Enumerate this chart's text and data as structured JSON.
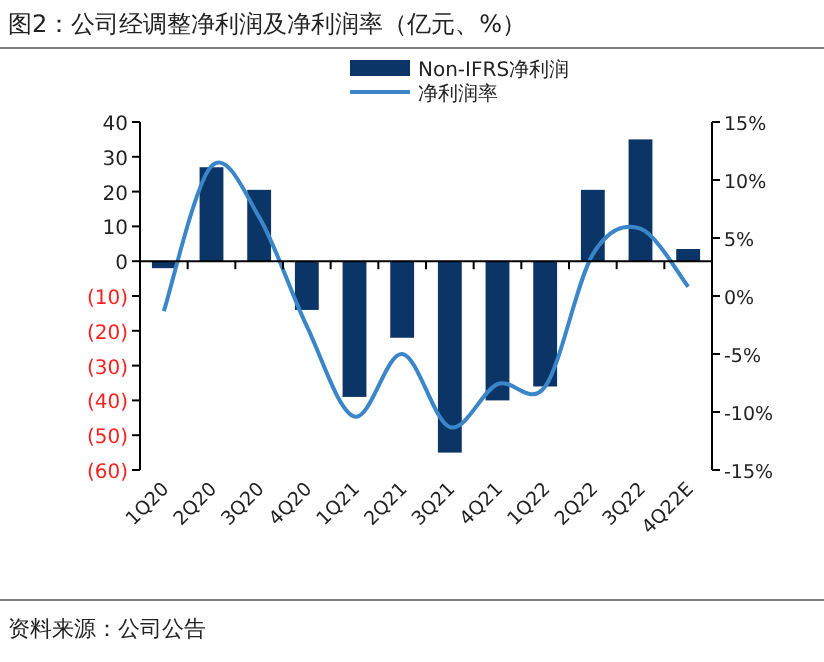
{
  "chart_data": {
    "type": "bar",
    "title": "图2：公司经调整净利润及净利润率（亿元、%）",
    "categories": [
      "1Q20",
      "2Q20",
      "3Q20",
      "4Q20",
      "1Q21",
      "2Q21",
      "3Q21",
      "4Q21",
      "1Q22",
      "2Q22",
      "3Q22",
      "4Q22E"
    ],
    "series": [
      {
        "name": "Non-IFRS净利润",
        "color": "#0b3566",
        "values": [
          -2,
          27,
          20.5,
          -14,
          -39,
          -22,
          -55,
          -40,
          -36,
          20.5,
          35,
          3.5
        ]
      },
      {
        "name": "净利润率",
        "type": "line",
        "axis": "y2",
        "color": "#3a86c8",
        "values": [
          -1.3,
          11.2,
          6.8,
          -2.6,
          -10.4,
          -5,
          -11.3,
          -7.6,
          -7.8,
          3.6,
          5.8,
          0.8
        ]
      }
    ],
    "ylim": [
      -60,
      40
    ],
    "yticks": [
      {
        "value": -60,
        "label": "(60)"
      },
      {
        "value": -50,
        "label": "(50)"
      },
      {
        "value": -40,
        "label": "(40)"
      },
      {
        "value": -30,
        "label": "(30)"
      },
      {
        "value": -20,
        "label": "(20)"
      },
      {
        "value": -10,
        "label": "(10)"
      },
      0,
      10,
      20,
      30,
      40
    ],
    "y2lim": [
      -15,
      15
    ],
    "y2ticks": [
      {
        "value": -15,
        "label": "-15%"
      },
      {
        "value": -10,
        "label": "-10%"
      },
      {
        "value": -5,
        "label": "-5%"
      },
      {
        "value": 0,
        "label": "0%"
      },
      {
        "value": 5,
        "label": "5%"
      },
      {
        "value": 10,
        "label": "10%"
      },
      {
        "value": 15,
        "label": "15%"
      }
    ],
    "legend": "top right",
    "annotations": [
      "资料来源：公司公告"
    ]
  }
}
